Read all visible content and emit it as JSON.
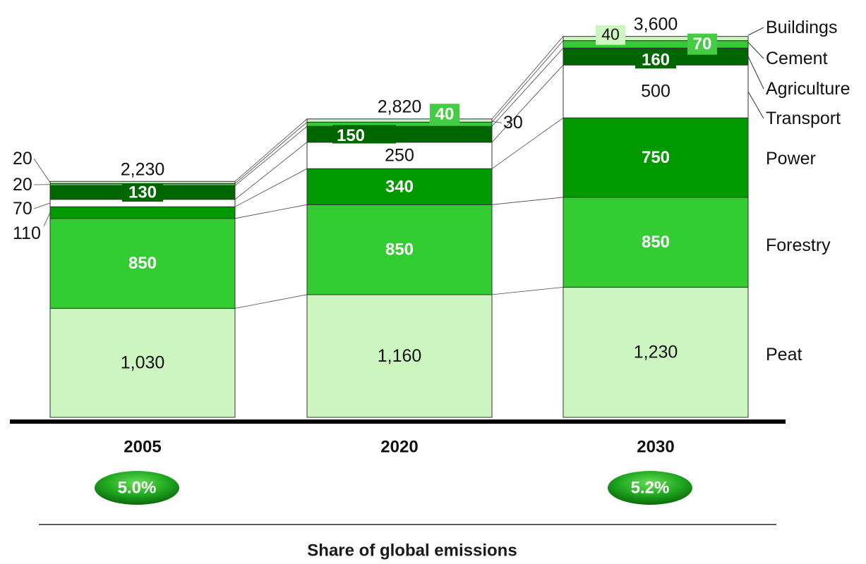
{
  "chart_data": {
    "type": "bar",
    "stacked": true,
    "categories": [
      "2005",
      "2020",
      "2030"
    ],
    "series": [
      {
        "name": "Peat",
        "values": [
          1030,
          1160,
          1230
        ],
        "color": "#ccf5c0",
        "value_labels": [
          "1,030",
          "1,160",
          "1,230"
        ]
      },
      {
        "name": "Forestry",
        "values": [
          850,
          850,
          850
        ],
        "color": "#33cc33",
        "value_labels": [
          "850",
          "850",
          "850"
        ]
      },
      {
        "name": "Power",
        "values": [
          110,
          340,
          750
        ],
        "color": "#009900",
        "value_labels": [
          "110",
          "340",
          "750"
        ]
      },
      {
        "name": "Transport",
        "values": [
          70,
          250,
          500
        ],
        "color": "#ffffff",
        "value_labels": [
          "70",
          "250",
          "500"
        ]
      },
      {
        "name": "Agriculture",
        "values": [
          130,
          150,
          160
        ],
        "color": "#006600",
        "value_labels": [
          "130",
          "150",
          "160"
        ]
      },
      {
        "name": "Cement",
        "values": [
          20,
          40,
          70
        ],
        "color": "#33cc33",
        "value_labels": [
          "20",
          "40",
          "70"
        ]
      },
      {
        "name": "Buildings",
        "values": [
          20,
          30,
          40
        ],
        "color": "#ccf5c0",
        "value_labels": [
          "20",
          "30",
          "40"
        ]
      }
    ],
    "totals": [
      "2,230",
      "2,820",
      "3,600"
    ],
    "legend_placement": "right",
    "grid": false,
    "shares": [
      {
        "category": "2005",
        "label": "5.0%"
      },
      {
        "category": "2030",
        "label": "5.2%"
      }
    ],
    "footer_title": "Share of global emissions"
  }
}
